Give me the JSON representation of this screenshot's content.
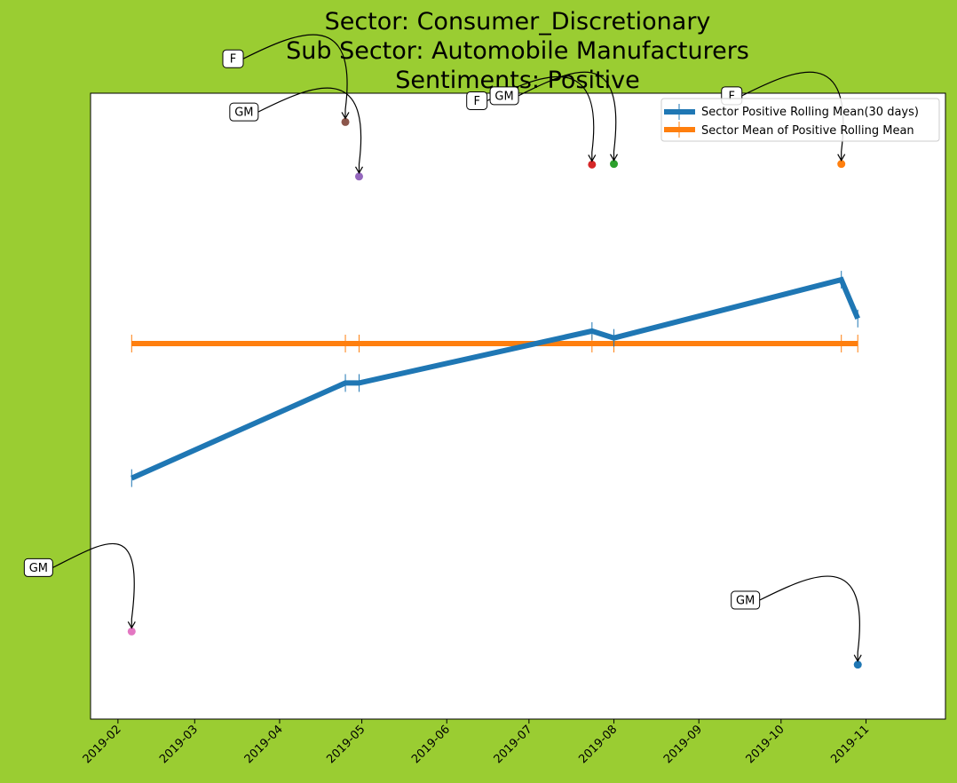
{
  "chart_data": {
    "type": "line",
    "title_lines": [
      "Sector:  Consumer_Discretionary",
      "Sub Sector:  Automobile Manufacturers",
      "Sentiments:  Positive"
    ],
    "xlabel": "",
    "ylabel": "",
    "grid": false,
    "legend_placement": "top-right",
    "x_ticks": [
      "2019-02",
      "2019-03",
      "2019-04",
      "2019-05",
      "2019-06",
      "2019-07",
      "2019-08",
      "2019-09",
      "2019-10",
      "2019-11"
    ],
    "xlim": [
      "2019-01-22",
      "2019-11-30"
    ],
    "ylim": [
      0,
      1
    ],
    "series": [
      {
        "name": "Sector Positive Rolling Mean(30 days)",
        "color": "#1f77b4",
        "points": [
          {
            "x": "2019-02-06",
            "y": 0.385
          },
          {
            "x": "2019-04-25",
            "y": 0.537
          },
          {
            "x": "2019-04-30",
            "y": 0.537
          },
          {
            "x": "2019-07-24",
            "y": 0.62
          },
          {
            "x": "2019-08-01",
            "y": 0.609
          },
          {
            "x": "2019-10-23",
            "y": 0.702
          },
          {
            "x": "2019-10-29",
            "y": 0.64
          }
        ]
      },
      {
        "name": "Sector Mean of Positive Rolling Mean",
        "color": "#ff7f0e",
        "points": [
          {
            "x": "2019-02-06",
            "y": 0.6
          },
          {
            "x": "2019-04-25",
            "y": 0.6
          },
          {
            "x": "2019-04-30",
            "y": 0.6
          },
          {
            "x": "2019-07-24",
            "y": 0.6
          },
          {
            "x": "2019-08-01",
            "y": 0.6
          },
          {
            "x": "2019-10-23",
            "y": 0.6
          },
          {
            "x": "2019-10-29",
            "y": 0.6
          }
        ]
      }
    ],
    "annotations": [
      {
        "label": "GM",
        "x": "2019-02-06",
        "y": 0.14,
        "color": "#e377c2",
        "text_x": "2019-01-03",
        "text_y": 0.242
      },
      {
        "label": "F",
        "x": "2019-04-25",
        "y": 0.954,
        "color": "#8c564b",
        "text_x": "2019-03-15",
        "text_y": 1.055
      },
      {
        "label": "GM",
        "x": "2019-04-30",
        "y": 0.867,
        "color": "#9467bd",
        "text_x": "2019-03-19",
        "text_y": 0.97
      },
      {
        "label": "F",
        "x": "2019-07-24",
        "y": 0.886,
        "color": "#d62728",
        "text_x": "2019-06-12",
        "text_y": 0.988
      },
      {
        "label": "GM",
        "x": "2019-08-01",
        "y": 0.887,
        "color": "#2ca02c",
        "text_x": "2019-06-22",
        "text_y": 0.996
      },
      {
        "label": "F",
        "x": "2019-10-23",
        "y": 0.887,
        "color": "#ff7f0e",
        "text_x": "2019-09-13",
        "text_y": 0.996
      },
      {
        "label": "GM",
        "x": "2019-10-29",
        "y": 0.087,
        "color": "#1f77b4",
        "text_x": "2019-09-18",
        "text_y": 0.19
      }
    ]
  }
}
